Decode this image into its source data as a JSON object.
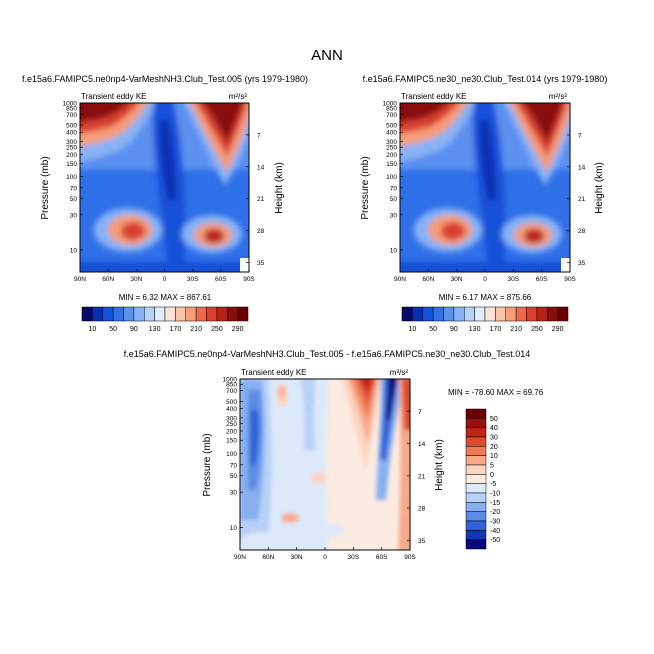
{
  "page": {
    "title": "ANN"
  },
  "chart_data": [
    {
      "type": "heatmap",
      "title": "f.e15a6.FAMIPC5.ne0np4-VarMeshNH3.Club_Test.005 (yrs 1979-1980)",
      "subtitle": "Transient eddy KE",
      "units": "m²/s²",
      "ylabel": "Pressure (mb)",
      "ylabel_right": "Height (km)",
      "x_ticks": [
        "90N",
        "60N",
        "30N",
        "0",
        "30S",
        "60S",
        "90S"
      ],
      "y_ticks": [
        "10",
        "30",
        "50",
        "70",
        "100",
        "150",
        "200",
        "250",
        "300",
        "400",
        "500",
        "700",
        "850",
        "1000"
      ],
      "y_ticks_right": [
        "35",
        "28",
        "21",
        "14",
        "7"
      ],
      "stats_text": "MIN =   6.32   MAX = 867.61",
      "min": 6.32,
      "max": 867.61,
      "colorbar": {
        "orientation": "horizontal",
        "labels": [
          "10",
          "50",
          "90",
          "130",
          "170",
          "210",
          "250",
          "290"
        ],
        "levels": [
          10,
          30,
          50,
          70,
          90,
          110,
          130,
          150,
          170,
          190,
          210,
          230,
          250,
          270,
          290
        ]
      }
    },
    {
      "type": "heatmap",
      "title": "f.e15a6.FAMIPC5.ne30_ne30.Club_Test.014 (yrs 1979-1980)",
      "subtitle": "Transient eddy KE",
      "units": "m²/s²",
      "ylabel": "Pressure (mb)",
      "ylabel_right": "Height (km)",
      "x_ticks": [
        "90N",
        "60N",
        "30N",
        "0",
        "30S",
        "60S",
        "90S"
      ],
      "y_ticks": [
        "10",
        "30",
        "50",
        "70",
        "100",
        "150",
        "200",
        "250",
        "300",
        "400",
        "500",
        "700",
        "850",
        "1000"
      ],
      "y_ticks_right": [
        "35",
        "28",
        "21",
        "14",
        "7"
      ],
      "stats_text": "MIN =   6.17   MAX = 875.66",
      "min": 6.17,
      "max": 875.66,
      "colorbar": {
        "orientation": "horizontal",
        "labels": [
          "10",
          "50",
          "90",
          "130",
          "170",
          "210",
          "250",
          "290"
        ],
        "levels": [
          10,
          30,
          50,
          70,
          90,
          110,
          130,
          150,
          170,
          190,
          210,
          230,
          250,
          270,
          290
        ]
      }
    },
    {
      "type": "heatmap",
      "title": "f.e15a6.FAMIPC5.ne0np4-VarMeshNH3.Club_Test.005 - f.e15a6.FAMIPC5.ne30_ne30.Club_Test.014",
      "subtitle": "Transient eddy KE",
      "units": "m²/s²",
      "ylabel": "Pressure (mb)",
      "ylabel_right": "Height (km)",
      "x_ticks": [
        "90N",
        "60N",
        "30N",
        "0",
        "30S",
        "60S",
        "90S"
      ],
      "y_ticks": [
        "10",
        "30",
        "50",
        "70",
        "100",
        "150",
        "200",
        "250",
        "300",
        "400",
        "500",
        "700",
        "850",
        "1000"
      ],
      "y_ticks_right": [
        "35",
        "28",
        "21",
        "14",
        "7"
      ],
      "stats_text": "MIN = -78.60   MAX =  69.76",
      "min": -78.6,
      "max": 69.76,
      "colorbar": {
        "orientation": "vertical",
        "labels": [
          "50",
          "40",
          "30",
          "20",
          "10",
          "5",
          "0",
          "-5",
          "-10",
          "-15",
          "-20",
          "-30",
          "-40",
          "-50"
        ]
      }
    }
  ],
  "colors": {
    "abs_scale": [
      "#08086b",
      "#0a2fb0",
      "#1450d8",
      "#2f6fe8",
      "#5a90f0",
      "#88b2f5",
      "#b6d2f8",
      "#dfeafb",
      "#fde3d4",
      "#fbc3a6",
      "#f59c78",
      "#ea6b4c",
      "#d84030",
      "#b8201a",
      "#8a0d0d",
      "#6a0000"
    ],
    "diff_scale": [
      "#6a0000",
      "#9a0f0f",
      "#c02416",
      "#dd4a2c",
      "#f07a58",
      "#f8a98a",
      "#fcd5c2",
      "#fcebe0",
      "#dbe9fb",
      "#b7d0f6",
      "#86aff0",
      "#5a8be6",
      "#2f62d6",
      "#1238b0",
      "#070a78"
    ]
  }
}
